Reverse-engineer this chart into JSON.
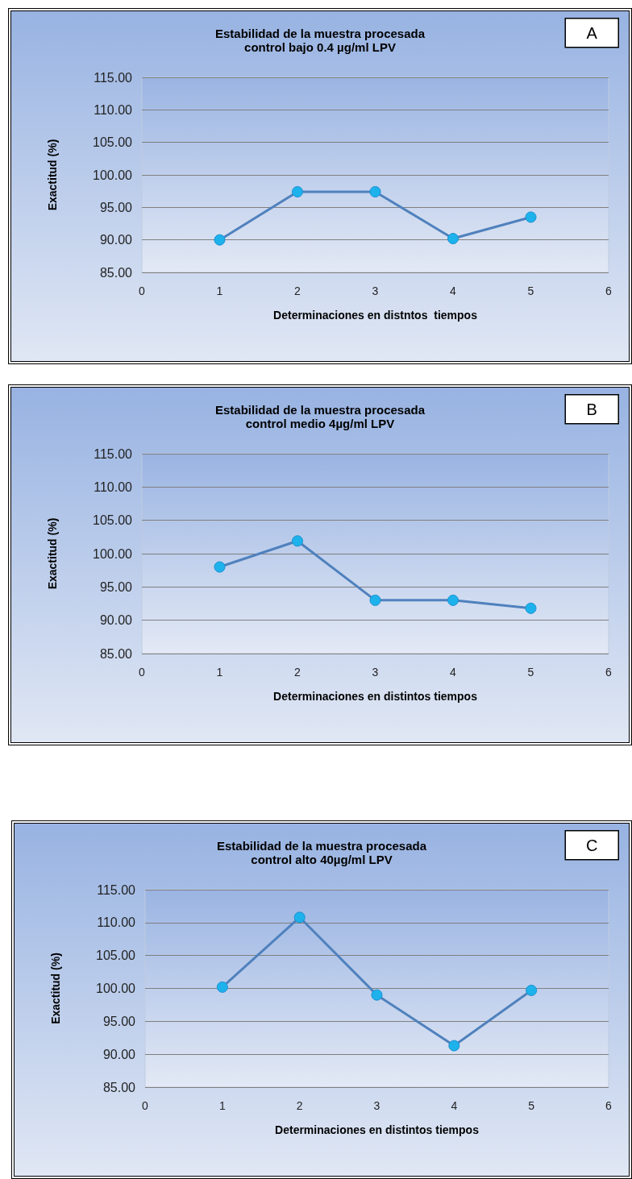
{
  "chart_data": [
    {
      "type": "line",
      "title": "Estabilidad de la muestra procesada\ncontrol bajo 0.4 µg/ml LPV",
      "xlabel": "Determinaciones en distntos  tiempos",
      "ylabel": "Exactitud (%)",
      "annotations": [
        "A"
      ],
      "x": [
        1,
        2,
        3,
        4,
        5
      ],
      "values": [
        90.0,
        97.4,
        97.4,
        90.2,
        93.5
      ],
      "color": "#4f81bd",
      "marker": "circle",
      "grid": "y",
      "xlim": [
        0,
        6
      ],
      "xticks": [
        0,
        1,
        2,
        3,
        4,
        5,
        6
      ],
      "ylim": [
        85,
        115
      ],
      "yticks": [
        {
          "value": 85,
          "label": "85.00"
        },
        {
          "value": 90,
          "label": "90.00"
        },
        {
          "value": 95,
          "label": "95.00"
        },
        {
          "value": 100,
          "label": "100.00"
        },
        {
          "value": 105,
          "label": "105.00"
        },
        {
          "value": 110,
          "label": "110.00"
        },
        {
          "value": 115,
          "label": "115.00"
        }
      ]
    },
    {
      "type": "line",
      "title": "Estabilidad de la muestra procesada\ncontrol medio 4µg/ml LPV",
      "xlabel": "Determinaciones en distintos tiempos",
      "ylabel": "Exactitud (%)",
      "annotations": [
        "B"
      ],
      "x": [
        1,
        2,
        3,
        4,
        5
      ],
      "values": [
        98.0,
        101.9,
        93.0,
        93.0,
        91.8
      ],
      "color": "#4f81bd",
      "marker": "circle",
      "grid": "y",
      "xlim": [
        0,
        6
      ],
      "xticks": [
        0,
        1,
        2,
        3,
        4,
        5,
        6
      ],
      "ylim": [
        85,
        115
      ],
      "yticks": [
        {
          "value": 85,
          "label": "85.00"
        },
        {
          "value": 90,
          "label": "90.00"
        },
        {
          "value": 95,
          "label": "95.00"
        },
        {
          "value": 100,
          "label": "100.00"
        },
        {
          "value": 105,
          "label": "105.00"
        },
        {
          "value": 110,
          "label": "110.00"
        },
        {
          "value": 115,
          "label": "115.00"
        }
      ]
    },
    {
      "type": "line",
      "title": "Estabilidad de la muestra procesada\ncontrol alto 40µg/ml LPV",
      "xlabel": "Determinaciones en distintos tiempos",
      "ylabel": "Exactitud (%)",
      "annotations": [
        "C"
      ],
      "x": [
        1,
        2,
        3,
        4,
        5
      ],
      "values": [
        100.2,
        110.8,
        99.0,
        91.3,
        99.7
      ],
      "color": "#4f81bd",
      "marker": "circle",
      "grid": "y",
      "xlim": [
        0,
        6
      ],
      "xticks": [
        0,
        1,
        2,
        3,
        4,
        5,
        6
      ],
      "ylim": [
        85,
        115
      ],
      "yticks": [
        {
          "value": 85,
          "label": "85.00"
        },
        {
          "value": 90,
          "label": "90.00"
        },
        {
          "value": 95,
          "label": "95.00"
        },
        {
          "value": 100,
          "label": "100.00"
        },
        {
          "value": 105,
          "label": "105.00"
        },
        {
          "value": 110,
          "label": "110.00"
        },
        {
          "value": 115,
          "label": "115.00"
        }
      ]
    }
  ]
}
